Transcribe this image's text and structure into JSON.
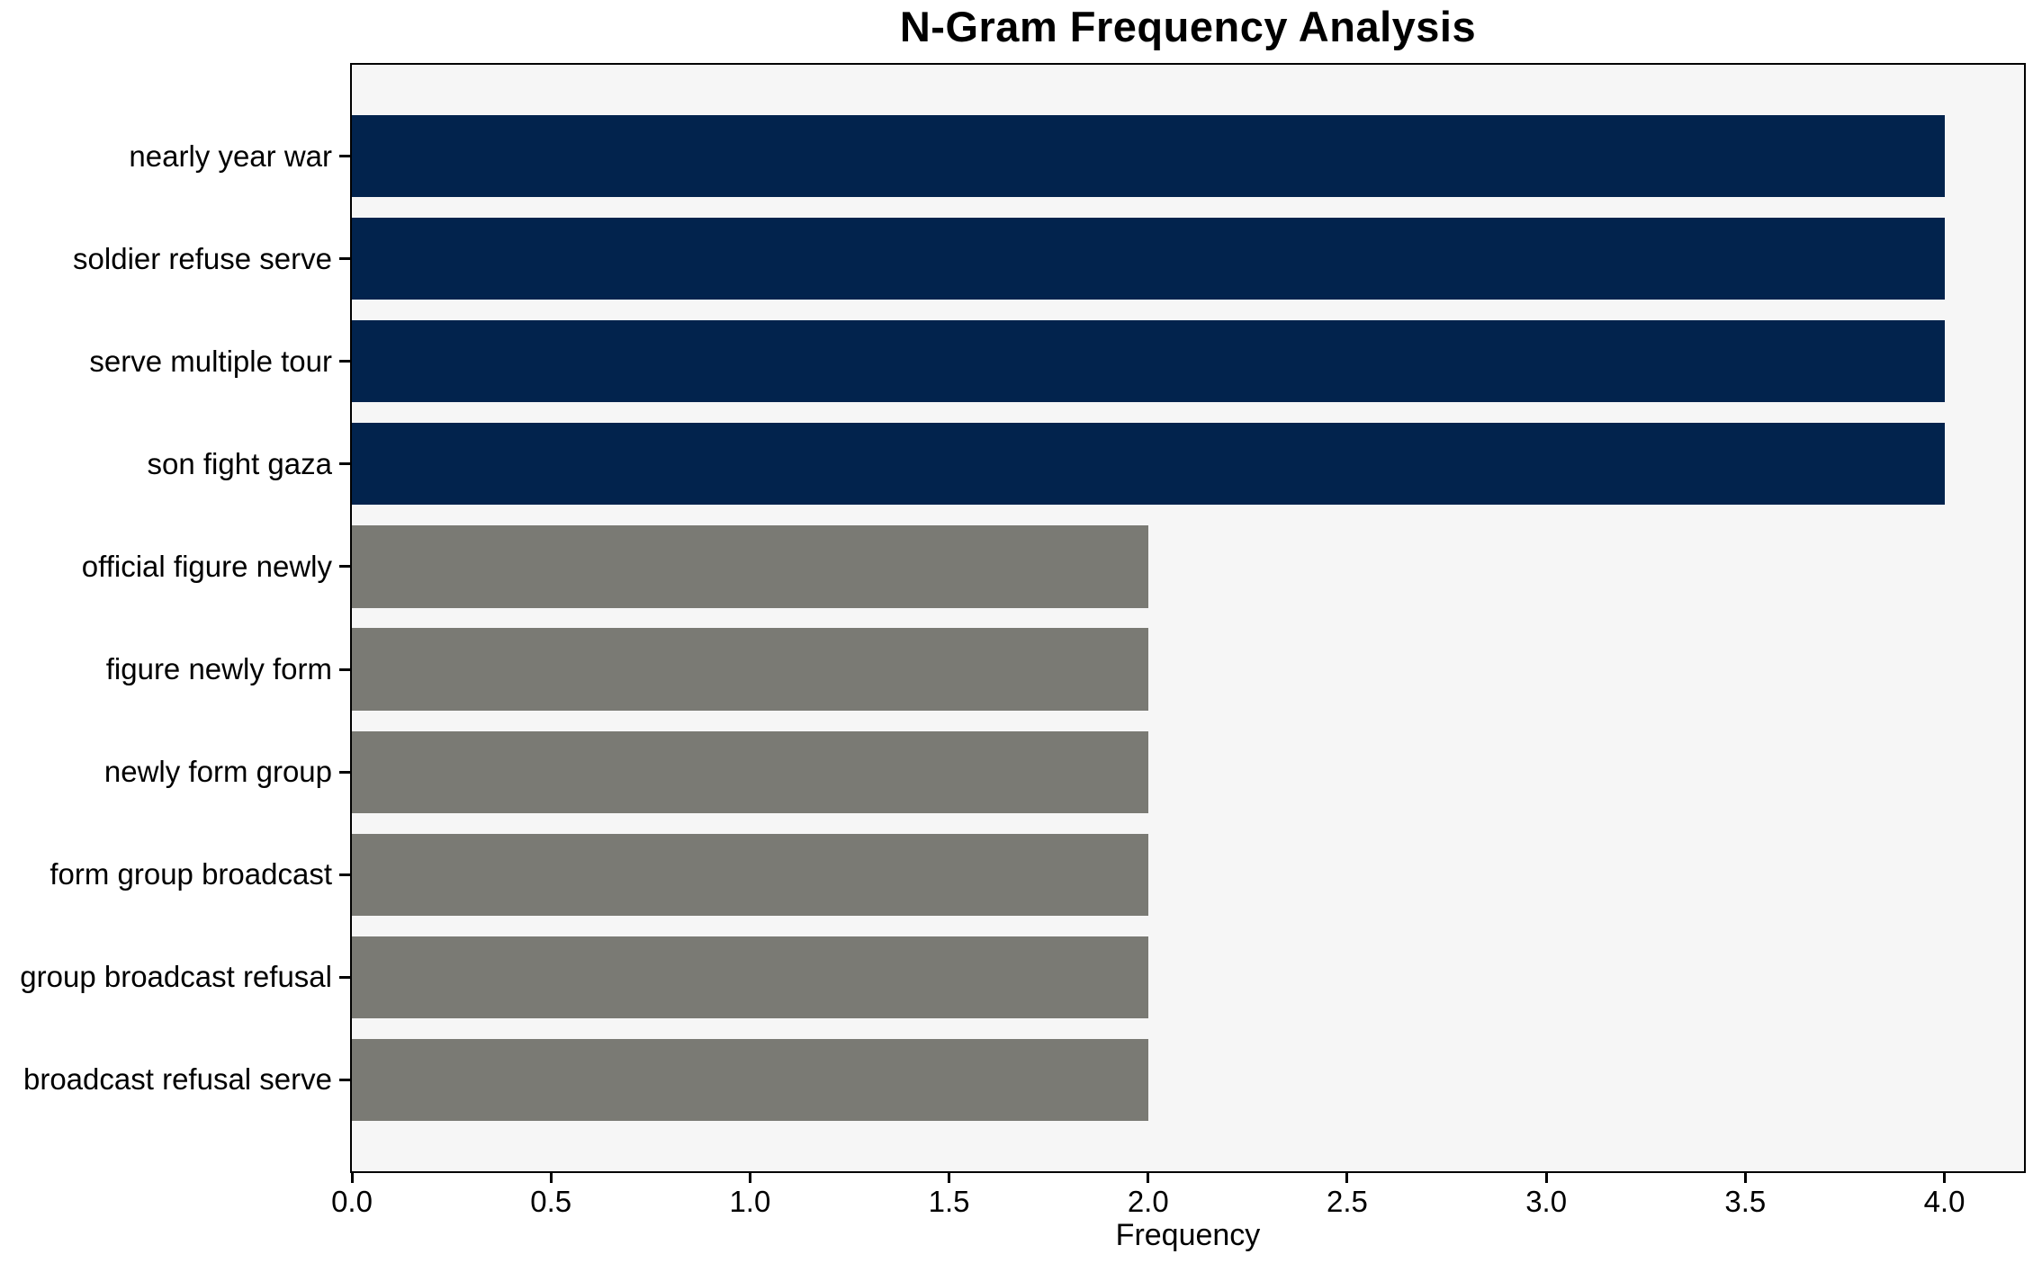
{
  "chart_data": {
    "type": "bar",
    "orientation": "horizontal",
    "title": "N-Gram Frequency Analysis",
    "xlabel": "Frequency",
    "ylabel": "",
    "categories": [
      "nearly year war",
      "soldier refuse serve",
      "serve multiple tour",
      "son fight gaza",
      "official figure newly",
      "figure newly form",
      "newly form group",
      "form group broadcast",
      "group broadcast refusal",
      "broadcast refusal serve"
    ],
    "values": [
      4,
      4,
      4,
      4,
      2,
      2,
      2,
      2,
      2,
      2
    ],
    "bar_colors": [
      "#02234d",
      "#02234d",
      "#02234d",
      "#02234d",
      "#7a7a74",
      "#7a7a74",
      "#7a7a74",
      "#7a7a74",
      "#7a7a74",
      "#7a7a74"
    ],
    "xlim": [
      0,
      4.2
    ],
    "xtick_labels": [
      "0.0",
      "0.5",
      "1.0",
      "1.5",
      "2.0",
      "2.5",
      "3.0",
      "3.5",
      "4.0"
    ],
    "grid": false,
    "legend": "none",
    "colors": {
      "highlight_bar": "#02234d",
      "default_bar": "#7a7a74",
      "plot_background": "#f6f6f6",
      "figure_background": "#ffffff",
      "axis": "#000000",
      "text": "#000000"
    }
  }
}
